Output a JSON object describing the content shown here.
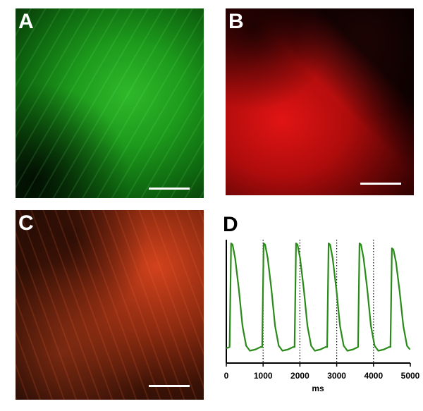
{
  "panel_labels": [
    "A",
    "B",
    "C"
  ],
  "chart_data": {
    "type": "line",
    "title": "D",
    "xlabel": "ms",
    "x": [
      0,
      90,
      130,
      170,
      240,
      340,
      440,
      540,
      640,
      790,
      930,
      975,
      1015,
      1055,
      1125,
      1225,
      1325,
      1425,
      1525,
      1675,
      1815,
      1855,
      1895,
      1935,
      2005,
      2105,
      2205,
      2305,
      2405,
      2555,
      2695,
      2740,
      2780,
      2820,
      2890,
      2990,
      3090,
      3190,
      3290,
      3440,
      3580,
      3620,
      3660,
      3730,
      3830,
      3930,
      4030,
      4130,
      4280,
      4420,
      4460,
      4500,
      4540,
      4610,
      4710,
      4810,
      4910,
      4990
    ],
    "series": [
      {
        "color": "#2a8a1a",
        "values": [
          0.12,
          0.13,
          0.97,
          0.96,
          0.85,
          0.6,
          0.3,
          0.14,
          0.1,
          0.11,
          0.13,
          0.13,
          0.97,
          0.96,
          0.85,
          0.6,
          0.3,
          0.14,
          0.1,
          0.11,
          0.13,
          0.13,
          0.97,
          0.96,
          0.85,
          0.6,
          0.3,
          0.14,
          0.1,
          0.11,
          0.13,
          0.13,
          0.97,
          0.96,
          0.85,
          0.6,
          0.3,
          0.14,
          0.1,
          0.11,
          0.13,
          0.97,
          0.96,
          0.85,
          0.6,
          0.3,
          0.14,
          0.1,
          0.11,
          0.13,
          0.13,
          0.93,
          0.92,
          0.82,
          0.58,
          0.3,
          0.14,
          0.11
        ]
      }
    ],
    "xlim": [
      0,
      5000
    ],
    "xticks": [
      0,
      1000,
      2000,
      3000,
      4000,
      5000
    ],
    "ylim": [
      0,
      1
    ],
    "grid": true
  }
}
